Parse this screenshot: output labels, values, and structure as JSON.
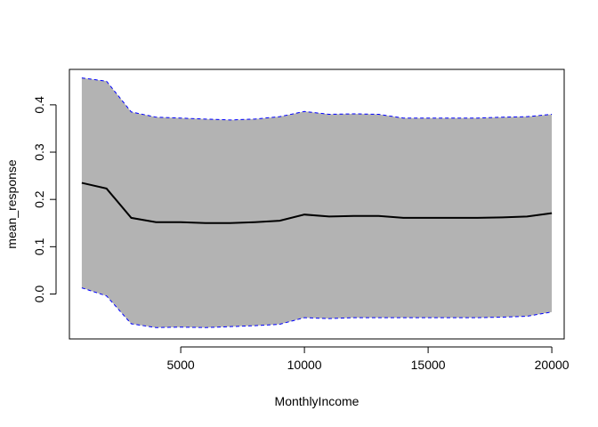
{
  "chart_data": {
    "type": "area",
    "title": "",
    "xlabel": "MonthlyIncome",
    "ylabel": "mean_response",
    "xlim": [
      500,
      20500
    ],
    "ylim": [
      -0.095,
      0.475
    ],
    "x_ticks": [
      5000,
      10000,
      15000,
      20000
    ],
    "x_tick_labels": [
      "5000",
      "10000",
      "15000",
      "20000"
    ],
    "y_ticks": [
      0.0,
      0.1,
      0.2,
      0.3,
      0.4
    ],
    "y_tick_labels": [
      "0.0",
      "0.1",
      "0.2",
      "0.3",
      "0.4"
    ],
    "grid": false,
    "legend": "none",
    "x": [
      1000,
      2000,
      3000,
      4000,
      5000,
      6000,
      7000,
      8000,
      9000,
      10000,
      11000,
      12000,
      13000,
      14000,
      15000,
      16000,
      17000,
      18000,
      19000,
      20000
    ],
    "series": [
      {
        "role": "mean",
        "color": "#000000",
        "values": [
          0.235,
          0.223,
          0.161,
          0.152,
          0.152,
          0.15,
          0.15,
          0.152,
          0.155,
          0.168,
          0.164,
          0.165,
          0.165,
          0.161,
          0.161,
          0.161,
          0.161,
          0.162,
          0.164,
          0.171
        ]
      },
      {
        "role": "upper",
        "color": "#0000ff",
        "values": [
          0.457,
          0.45,
          0.385,
          0.374,
          0.372,
          0.37,
          0.368,
          0.37,
          0.375,
          0.386,
          0.38,
          0.381,
          0.38,
          0.372,
          0.372,
          0.372,
          0.372,
          0.374,
          0.375,
          0.38
        ]
      },
      {
        "role": "lower",
        "color": "#0000ff",
        "values": [
          0.013,
          -0.004,
          -0.063,
          -0.071,
          -0.07,
          -0.071,
          -0.069,
          -0.067,
          -0.064,
          -0.05,
          -0.052,
          -0.05,
          -0.05,
          -0.05,
          -0.05,
          -0.05,
          -0.05,
          -0.049,
          -0.047,
          -0.038
        ]
      }
    ],
    "band_fill_color": "#b3b3b3"
  }
}
